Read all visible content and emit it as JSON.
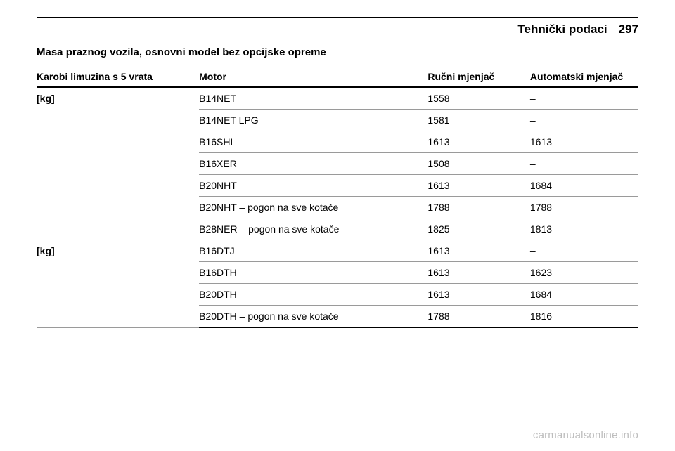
{
  "header": {
    "section_title": "Tehnički podaci",
    "page_number": "297"
  },
  "heading": "Masa praznog vozila, osnovni model bez opcijske opreme",
  "table": {
    "columns": {
      "body": "Karobi limuzina s 5 vrata",
      "engine": "Motor",
      "manual": "Ručni mjenjač",
      "auto": "Automatski mjenjač"
    },
    "groups": [
      {
        "label": "[kg]",
        "rows": [
          {
            "engine": "B14NET",
            "manual": "1558",
            "auto": "–"
          },
          {
            "engine": "B14NET LPG",
            "manual": "1581",
            "auto": "–"
          },
          {
            "engine": "B16SHL",
            "manual": "1613",
            "auto": "1613"
          },
          {
            "engine": "B16XER",
            "manual": "1508",
            "auto": "–"
          },
          {
            "engine": "B20NHT",
            "manual": "1613",
            "auto": "1684"
          },
          {
            "engine": "B20NHT – pogon na sve kotače",
            "manual": "1788",
            "auto": "1788"
          },
          {
            "engine": "B28NER – pogon na sve kotače",
            "manual": "1825",
            "auto": "1813"
          }
        ]
      },
      {
        "label": "[kg]",
        "rows": [
          {
            "engine": "B16DTJ",
            "manual": "1613",
            "auto": "–"
          },
          {
            "engine": "B16DTH",
            "manual": "1613",
            "auto": "1623"
          },
          {
            "engine": "B20DTH",
            "manual": "1613",
            "auto": "1684"
          },
          {
            "engine": "B20DTH – pogon na sve kotače",
            "manual": "1788",
            "auto": "1816"
          }
        ]
      }
    ]
  },
  "watermark": "carmanualsonline.info"
}
